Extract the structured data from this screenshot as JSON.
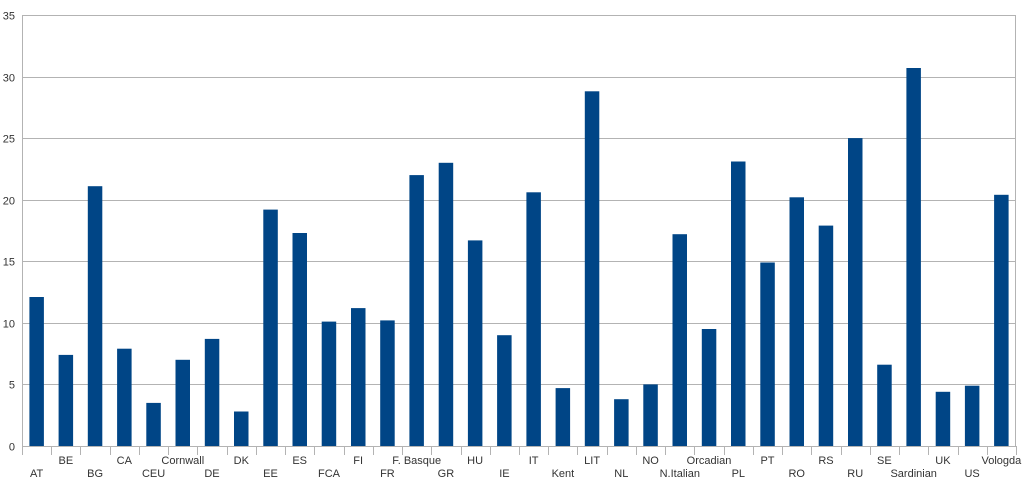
{
  "chart_data": {
    "type": "bar",
    "categories": [
      "AT",
      "BE",
      "BG",
      "CA",
      "CEU",
      "Cornwall",
      "DE",
      "DK",
      "EE",
      "ES",
      "FCA",
      "FI",
      "FR",
      "F. Basque",
      "GR",
      "HU",
      "IE",
      "IT",
      "Kent",
      "LIT",
      "NL",
      "NO",
      "N.Italian",
      "Orcadian",
      "PL",
      "PT",
      "RO",
      "RS",
      "RU",
      "SE",
      "Sardinian",
      "UK",
      "US",
      "Vologda"
    ],
    "series": [
      {
        "values": [
          12.1,
          7.4,
          21.1,
          7.9,
          3.5,
          7.0,
          8.7,
          2.8,
          19.2,
          17.3,
          10.1,
          11.2,
          10.2,
          22.0,
          23.0,
          16.7,
          9.0,
          20.6,
          4.7,
          28.8,
          3.8,
          5.0,
          17.2,
          9.5,
          23.1,
          14.9,
          20.2,
          17.9,
          25.0,
          6.6,
          30.7,
          4.4,
          4.9,
          20.4
        ]
      }
    ],
    "ylim": [
      0,
      35
    ],
    "yticks": [
      0,
      5,
      10,
      15,
      20,
      25,
      30,
      35
    ],
    "grid": true,
    "bar_color": "#004586",
    "grid_color": "#b3b3b3",
    "axis_color": "#b3b3b3"
  }
}
